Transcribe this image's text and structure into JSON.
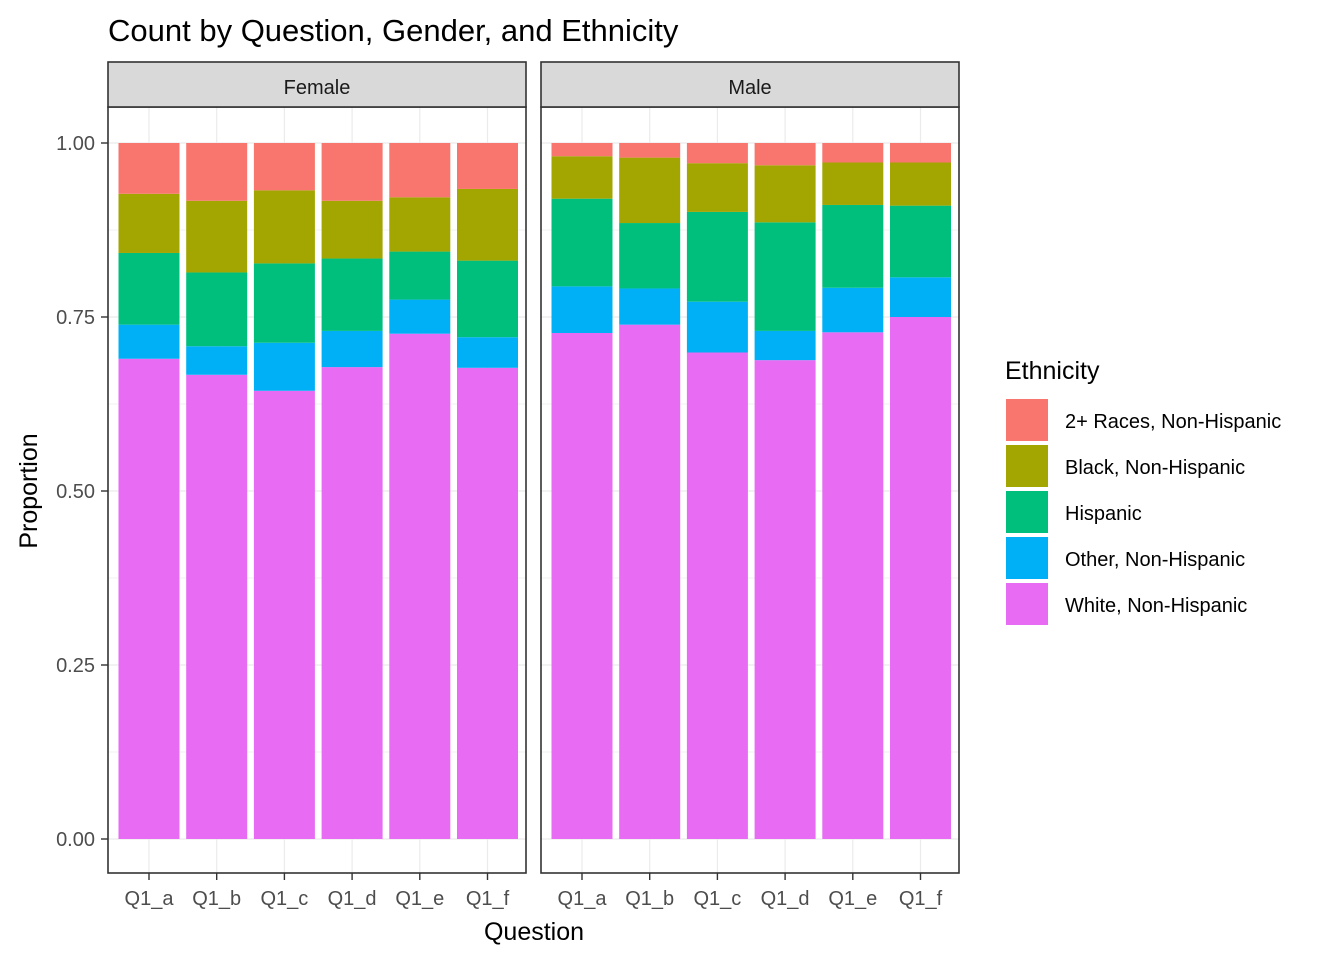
{
  "chart_data": {
    "type": "bar",
    "stacked": true,
    "title": "Count by Question, Gender, and Ethnicity",
    "xlabel": "Question",
    "ylabel": "Proportion",
    "ylim": [
      0,
      1
    ],
    "yticks": [
      "0.00",
      "0.25",
      "0.50",
      "0.75",
      "1.00"
    ],
    "grid": true,
    "legend_position": "right",
    "legend_title": "Ethnicity",
    "categories": [
      "Q1_a",
      "Q1_b",
      "Q1_c",
      "Q1_d",
      "Q1_e",
      "Q1_f"
    ],
    "series_names": [
      "2+ Races, Non-Hispanic",
      "Black, Non-Hispanic",
      "Hispanic",
      "Other, Non-Hispanic",
      "White, Non-Hispanic"
    ],
    "colors": [
      "#F8766D",
      "#A3A500",
      "#00BF7D",
      "#00B0F6",
      "#E76BF3"
    ],
    "panels": [
      {
        "name": "Female",
        "series": [
          {
            "name": "2+ Races, Non-Hispanic",
            "values": [
              0.073,
              0.083,
              0.068,
              0.083,
              0.078,
              0.066
            ]
          },
          {
            "name": "Black, Non-Hispanic",
            "values": [
              0.085,
              0.103,
              0.105,
              0.083,
              0.078,
              0.103
            ]
          },
          {
            "name": "Hispanic",
            "values": [
              0.103,
              0.106,
              0.114,
              0.104,
              0.069,
              0.11
            ]
          },
          {
            "name": "Other, Non-Hispanic",
            "values": [
              0.049,
              0.041,
              0.069,
              0.052,
              0.049,
              0.044
            ]
          },
          {
            "name": "White, Non-Hispanic",
            "values": [
              0.69,
              0.667,
              0.644,
              0.678,
              0.726,
              0.677
            ]
          }
        ]
      },
      {
        "name": "Male",
        "series": [
          {
            "name": "2+ Races, Non-Hispanic",
            "values": [
              0.019,
              0.021,
              0.029,
              0.032,
              0.028,
              0.028
            ]
          },
          {
            "name": "Black, Non-Hispanic",
            "values": [
              0.061,
              0.094,
              0.07,
              0.082,
              0.061,
              0.062
            ]
          },
          {
            "name": "Hispanic",
            "values": [
              0.126,
              0.094,
              0.129,
              0.156,
              0.119,
              0.103
            ]
          },
          {
            "name": "Other, Non-Hispanic",
            "values": [
              0.067,
              0.052,
              0.073,
              0.042,
              0.064,
              0.057
            ]
          },
          {
            "name": "White, Non-Hispanic",
            "values": [
              0.727,
              0.739,
              0.699,
              0.688,
              0.728,
              0.75
            ]
          }
        ]
      }
    ]
  }
}
